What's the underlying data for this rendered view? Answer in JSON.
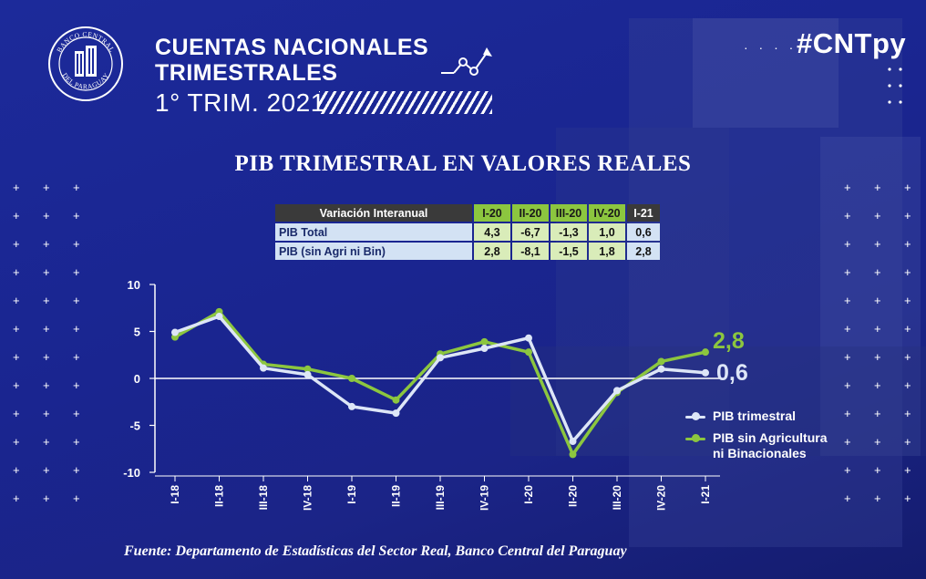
{
  "header": {
    "logo_text_top": "BANCO CENTRAL",
    "logo_text_bottom": "DEL PARAGUAY",
    "title_line1": "CUENTAS NACIONALES",
    "title_line2": "TRIMESTRALES",
    "subtitle": "1° TRIM. 2021",
    "hashtag": "#CNTpy"
  },
  "chart_title": "PIB TRIMESTRAL EN VALORES REALES",
  "table": {
    "header_label": "Variación Interanual",
    "quarters": [
      "I-20",
      "II-20",
      "III-20",
      "IV-20",
      "I-21"
    ],
    "rows": [
      {
        "label": "PIB Total",
        "values": [
          "4,3",
          "-6,7",
          "-1,3",
          "1,0",
          "0,6"
        ]
      },
      {
        "label": "PIB (sin Agri ni Bin)",
        "values": [
          "2,8",
          "-8,1",
          "-1,5",
          "1,8",
          "2,8"
        ]
      }
    ]
  },
  "colors": {
    "series1": "#dde6f7",
    "series2": "#8cc63f",
    "background": "#1c2a9a"
  },
  "chart_data": {
    "type": "line",
    "title": "PIB TRIMESTRAL EN VALORES REALES",
    "categories": [
      "I-18",
      "II-18",
      "III-18",
      "IV-18",
      "I-19",
      "II-19",
      "III-19",
      "IV-19",
      "I-20",
      "II-20",
      "III-20",
      "IV-20",
      "I-21"
    ],
    "yticks": [
      "10",
      "5",
      "0",
      "-5",
      "-10"
    ],
    "ylim": [
      -10,
      10
    ],
    "series": [
      {
        "name": "PIB trimestral",
        "values": [
          4.9,
          6.6,
          1.1,
          0.4,
          -3.0,
          -3.7,
          2.2,
          3.2,
          4.3,
          -6.7,
          -1.3,
          1.0,
          0.6
        ],
        "end_label": "0,6"
      },
      {
        "name": "PIB sin Agricultura ni Binacionales",
        "values": [
          4.4,
          7.1,
          1.5,
          1.0,
          0.0,
          -2.3,
          2.6,
          3.9,
          2.8,
          -8.1,
          -1.5,
          1.8,
          2.8
        ],
        "end_label": "2,8"
      }
    ],
    "grid": false,
    "legend_position": "right"
  },
  "legend": {
    "item1": "PIB trimestral",
    "item2_line1": "PIB sin Agricultura",
    "item2_line2": "ni Binacionales"
  },
  "source": "Fuente: Departamento de Estadísticas del Sector Real, Banco Central del Paraguay"
}
